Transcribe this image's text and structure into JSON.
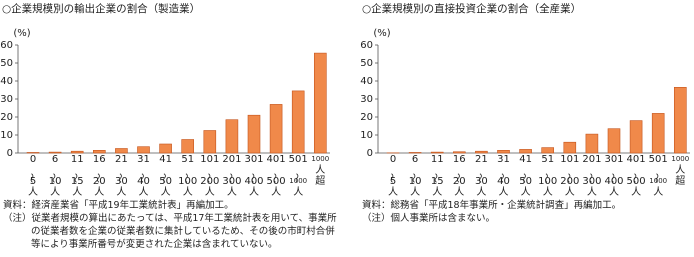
{
  "chart_data": [
    {
      "type": "bar",
      "title": "○企業規模別の輸出企業の割合（製造業）",
      "unit": "(%)",
      "categories": [
        "0〜5人",
        "6〜10人",
        "11〜15人",
        "16〜20人",
        "21〜30人",
        "31〜40人",
        "41〜50人",
        "51〜100人",
        "101〜200人",
        "201〜300人",
        "301〜400人",
        "401〜500人",
        "501〜1000人",
        "1000人超"
      ],
      "values": [
        0.3,
        0.5,
        1,
        1.5,
        2.5,
        3.5,
        5,
        7.5,
        12.5,
        18.5,
        21,
        27,
        34.5,
        55.5
      ],
      "color": "#f0894a",
      "ylim": [
        0,
        60
      ],
      "yticks": [
        0,
        10,
        20,
        30,
        40,
        50,
        60
      ],
      "grid": false,
      "source": "資料：経済産業省「平成19年工業統計表」再編加工。",
      "note": "（注）従業者規模の算出にあたっては、平成17年工業統計表を用いて、事業所の従業者数を企業の従業者数に集計しているため、その後の市町村合併等により事業所番号が変更された企業は含まれていない。"
    },
    {
      "type": "bar",
      "title": "○企業規模別の直接投資企業の割合（全産業）",
      "unit": "(%)",
      "categories": [
        "0〜5人",
        "6〜10人",
        "11〜15人",
        "16〜20人",
        "21〜30人",
        "31〜40人",
        "41〜50人",
        "51〜100人",
        "101〜200人",
        "201〜300人",
        "301〜400人",
        "401〜500人",
        "501〜1000人",
        "1000人超"
      ],
      "values": [
        0.1,
        0.3,
        0.5,
        0.7,
        1,
        1.5,
        2,
        3,
        6,
        10.5,
        13.5,
        18,
        22,
        36.5
      ],
      "color": "#f0894a",
      "ylim": [
        0,
        60
      ],
      "yticks": [
        0,
        10,
        20,
        30,
        40,
        50,
        60
      ],
      "grid": false,
      "source": "資料：総務省「平成18年事業所・企業統計調査」再編加工。",
      "note": "（注）個人事業所は含まない。"
    }
  ]
}
